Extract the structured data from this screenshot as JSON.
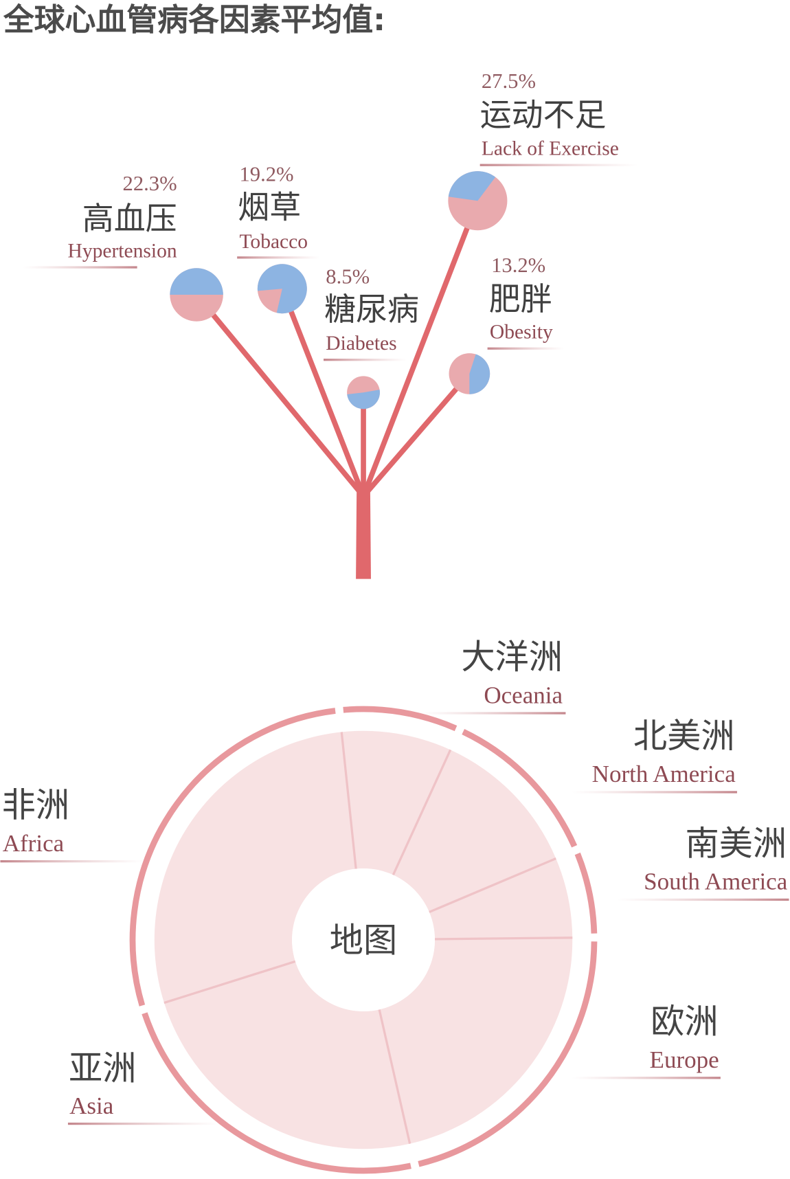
{
  "chart_data": [
    {
      "type": "pie",
      "title": "全球心血管病各因素平均值:",
      "colors": {
        "share_a": "#8db4e2",
        "share_b": "#e9aaae",
        "tree": "#e0686c"
      },
      "factors": [
        {
          "name_cn": "高血压",
          "name_en": "Hypertension",
          "value": 22.3,
          "value_label": "22.3%",
          "share_a": 0.5
        },
        {
          "name_cn": "烟草",
          "name_en": "Tobacco",
          "value": 19.2,
          "value_label": "19.2%",
          "share_a": 0.8
        },
        {
          "name_cn": "糖尿病",
          "name_en": "Diabetes",
          "value": 8.5,
          "value_label": "8.5%",
          "share_a": 0.51
        },
        {
          "name_cn": "运动不足",
          "name_en": "Lack of Exercise",
          "value": 27.5,
          "value_label": "27.5%",
          "share_a": 0.33
        },
        {
          "name_cn": "肥胖",
          "name_en": "Obesity",
          "value": 13.2,
          "value_label": "13.2%",
          "share_a": 0.45
        }
      ]
    },
    {
      "type": "pie",
      "center_label": "地图",
      "colors": {
        "fill": "#f8e2e3",
        "ring": "#e8989d",
        "divider": "#efc3c7"
      },
      "regions": [
        {
          "name_cn": "大洋洲",
          "name_en": "Oceania",
          "share": 0.085
        },
        {
          "name_cn": "北美洲",
          "name_en": "North America",
          "share": 0.118
        },
        {
          "name_cn": "南美洲",
          "name_en": "South America",
          "share": 0.062
        },
        {
          "name_cn": "欧洲",
          "name_en": "Europe",
          "share": 0.216
        },
        {
          "name_cn": "亚洲",
          "name_en": "Asia",
          "share": 0.237
        },
        {
          "name_cn": "非洲",
          "name_en": "Africa",
          "share": 0.282
        }
      ]
    }
  ]
}
